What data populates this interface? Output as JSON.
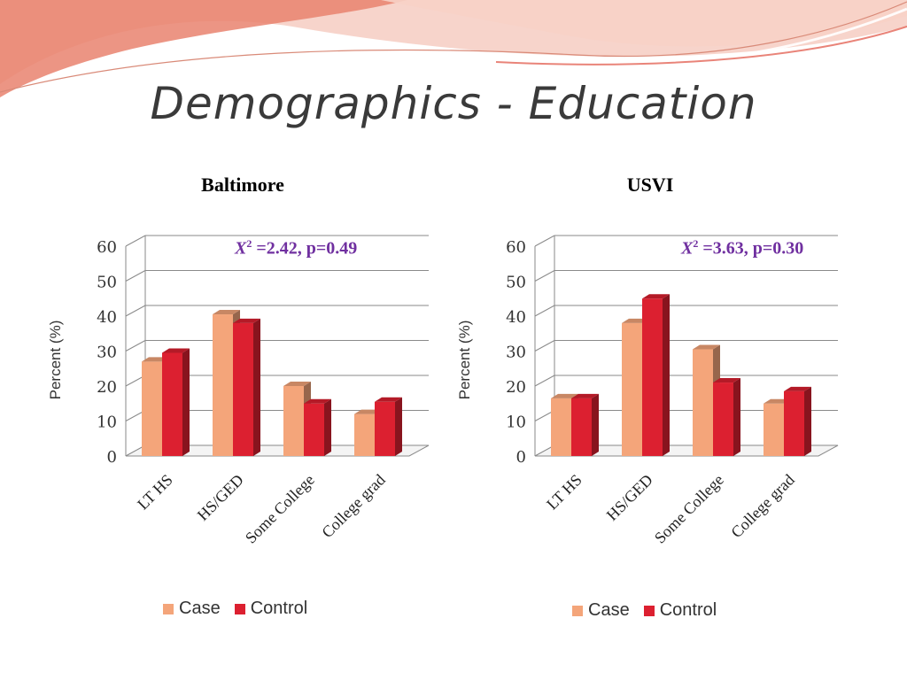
{
  "slide": {
    "title": "Demographics - Education"
  },
  "colors": {
    "case": "#f4a57a",
    "control": "#dc2030",
    "purple": "#7030a0"
  },
  "legend": {
    "case_label": "Case",
    "control_label": "Control"
  },
  "chart_data": [
    {
      "type": "bar",
      "title": "Baltimore",
      "ylabel": "Percent (%)",
      "xlabel": "",
      "ylim": [
        0,
        60
      ],
      "yticks": [
        "0",
        "10",
        "20",
        "30",
        "40",
        "50",
        "60"
      ],
      "categories": [
        "LT HS",
        "HS/GED",
        "Some College",
        "College grad"
      ],
      "series": [
        {
          "name": "Case",
          "values": [
            27,
            40.5,
            20,
            12
          ]
        },
        {
          "name": "Control",
          "values": [
            29.5,
            38,
            15,
            15.5
          ]
        }
      ],
      "annotation": {
        "stat_symbol": "X",
        "stat_sup": "2",
        "stat_value": "=2.42, p=0.49"
      },
      "grid": true,
      "legend_position": "bottom"
    },
    {
      "type": "bar",
      "title": "USVI",
      "ylabel": "Percent (%)",
      "xlabel": "",
      "ylim": [
        0,
        60
      ],
      "yticks": [
        "0",
        "10",
        "20",
        "30",
        "40",
        "50",
        "60"
      ],
      "categories": [
        "LT HS",
        "HS/GED",
        "Some College",
        "College grad"
      ],
      "series": [
        {
          "name": "Case",
          "values": [
            16.5,
            38,
            30.5,
            15
          ]
        },
        {
          "name": "Control",
          "values": [
            16.5,
            45,
            21,
            18.5
          ]
        }
      ],
      "annotation": {
        "stat_symbol": "X",
        "stat_sup": "2",
        "stat_value": "=3.63, p=0.30"
      },
      "grid": true,
      "legend_position": "bottom"
    }
  ]
}
